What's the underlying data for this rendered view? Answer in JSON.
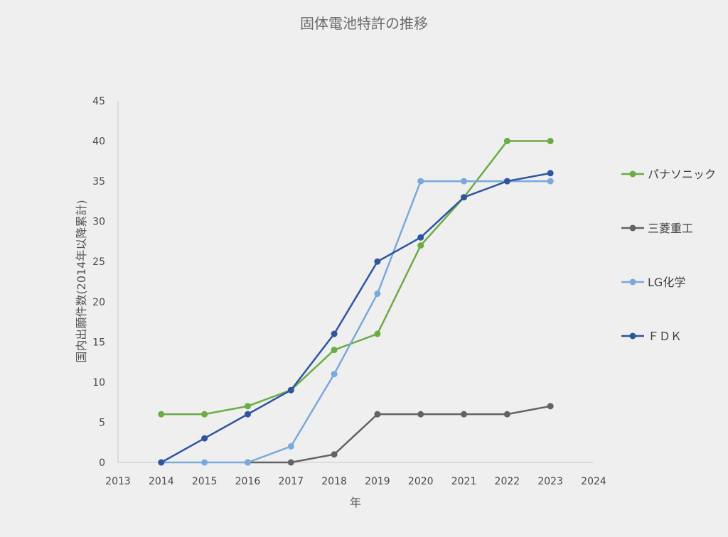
{
  "chart_data": {
    "type": "line",
    "title": "固体電池特許の推移",
    "xlabel": "年",
    "ylabel": "国内出願件数(2014年以降累計)",
    "x_ticks": [
      "2013",
      "2014",
      "2015",
      "2016",
      "2017",
      "2018",
      "2019",
      "2020",
      "2021",
      "2022",
      "2023",
      "2024"
    ],
    "xlim": [
      2013,
      2024
    ],
    "y_ticks": [
      "0",
      "5",
      "10",
      "15",
      "20",
      "25",
      "30",
      "35",
      "40",
      "45"
    ],
    "ylim": [
      0,
      45
    ],
    "grid": false,
    "legend_position": "right",
    "x": [
      2014,
      2015,
      2016,
      2017,
      2018,
      2019,
      2020,
      2021,
      2022,
      2023
    ],
    "series": [
      {
        "name": "パナソニック",
        "color": "#6aac46",
        "values": [
          6,
          6,
          7,
          9,
          14,
          16,
          27,
          33,
          40,
          40
        ]
      },
      {
        "name": "三菱重工",
        "color": "#636363",
        "values": [
          null,
          null,
          0,
          0,
          1,
          6,
          6,
          6,
          6,
          7
        ]
      },
      {
        "name": "LG化学",
        "color": "#7aa9dc",
        "values": [
          0,
          0,
          0,
          2,
          11,
          21,
          35,
          35,
          35,
          35
        ]
      },
      {
        "name": "ＦＤＫ",
        "color": "#2f559e",
        "values": [
          0,
          3,
          6,
          9,
          16,
          25,
          28,
          33,
          35,
          36
        ]
      }
    ]
  }
}
